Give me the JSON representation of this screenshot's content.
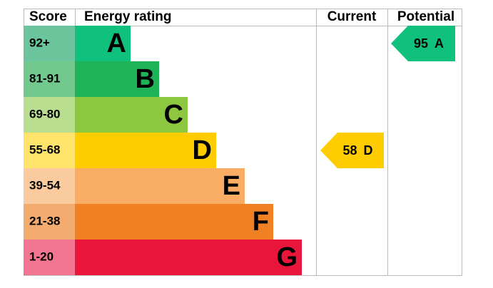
{
  "chart_data": {
    "type": "epc",
    "headers": {
      "score": "Score",
      "rating": "Energy rating",
      "current": "Current",
      "potential": "Potential"
    },
    "bands": [
      {
        "score": "92+",
        "letter": "A",
        "color": "#10c17d",
        "score_color": "#6cc49c"
      },
      {
        "score": "81-91",
        "letter": "B",
        "color": "#1db356",
        "score_color": "#72c98e"
      },
      {
        "score": "69-80",
        "letter": "C",
        "color": "#8dc63f",
        "score_color": "#b9de90"
      },
      {
        "score": "55-68",
        "letter": "D",
        "color": "#ffcc00",
        "score_color": "#ffe36b"
      },
      {
        "score": "39-54",
        "letter": "E",
        "color": "#f9ac64",
        "score_color": "#fbcba0"
      },
      {
        "score": "21-38",
        "letter": "F",
        "color": "#ef8023",
        "score_color": "#f4ab6f"
      },
      {
        "score": "1-20",
        "letter": "G",
        "color": "#e9153b",
        "score_color": "#f27592"
      }
    ],
    "current": {
      "value": 58,
      "letter": "D"
    },
    "potential": {
      "value": 95,
      "letter": "A"
    }
  }
}
